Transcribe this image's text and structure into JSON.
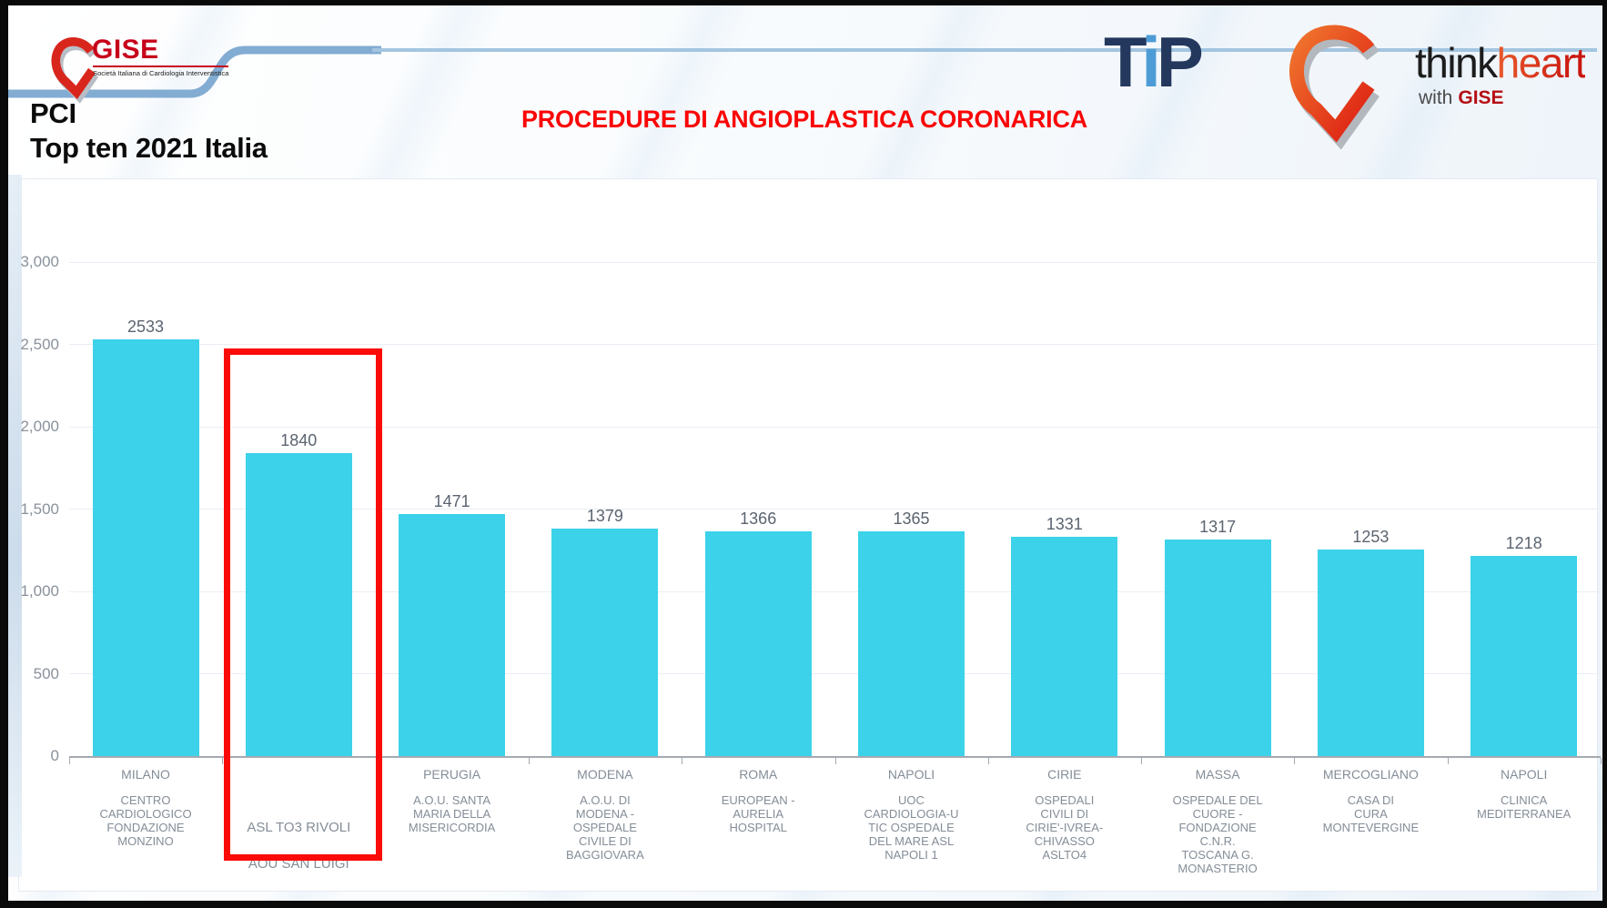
{
  "header": {
    "gise_logo": {
      "name": "GISE",
      "tagline": "Società Italiana di Cardiologia Interventistica"
    },
    "slide_title_line1": "PCI",
    "slide_title_line2": "Top ten 2021 Italia",
    "main_heading": "PROCEDURE DI ANGIOPLASTICA CORONARICA",
    "tip_logo": {
      "t": "T",
      "i": "i",
      "p": "P"
    },
    "thinkheart_logo": {
      "think": "think",
      "heart": "heart",
      "with": "with",
      "gise": "GISE"
    }
  },
  "chart_data": {
    "type": "bar",
    "title": "PCI Top ten 2021 Italia",
    "xlabel": "",
    "ylabel": "",
    "ylim": [
      0,
      3000
    ],
    "grid": true,
    "legend": false,
    "bar_color": "#3cd2e9",
    "highlight_color": "#fa0b07",
    "highlighted_index": 1,
    "y_ticks": [
      {
        "value": 0,
        "label": "0"
      },
      {
        "value": 500,
        "label": "500"
      },
      {
        "value": 1000,
        "label": "1,000"
      },
      {
        "value": 1500,
        "label": "1,500"
      },
      {
        "value": 2000,
        "label": "2,000"
      },
      {
        "value": 2500,
        "label": "2,500"
      },
      {
        "value": 3000,
        "label": "3,000"
      }
    ],
    "values": [
      2533,
      1840,
      1471,
      1379,
      1366,
      1365,
      1331,
      1317,
      1253,
      1218
    ],
    "categories": [
      {
        "city": "MILANO",
        "hospital_lines": [
          "CENTRO",
          "CARDIOLOGICO",
          "FONDAZIONE",
          "MONZINO"
        ]
      },
      {
        "city": "",
        "hospital_lines": [
          "ASL TO3 RIVOLI",
          "AOU SAN LUIGI"
        ]
      },
      {
        "city": "PERUGIA",
        "hospital_lines": [
          "A.O.U. SANTA",
          "MARIA DELLA",
          "MISERICORDIA"
        ]
      },
      {
        "city": "MODENA",
        "hospital_lines": [
          "A.O.U. DI",
          "MODENA -",
          "OSPEDALE",
          "CIVILE DI",
          "BAGGIOVARA"
        ]
      },
      {
        "city": "ROMA",
        "hospital_lines": [
          "EUROPEAN -",
          "AURELIA",
          "HOSPITAL"
        ]
      },
      {
        "city": "NAPOLI",
        "hospital_lines": [
          "UOC",
          "CARDIOLOGIA-U",
          "TIC OSPEDALE",
          "DEL MARE ASL",
          "NAPOLI 1"
        ]
      },
      {
        "city": "CIRIE",
        "hospital_lines": [
          "OSPEDALI",
          "CIVILI DI",
          "CIRIE'-IVREA-",
          "CHIVASSO",
          "ASLTO4"
        ]
      },
      {
        "city": "MASSA",
        "hospital_lines": [
          "OSPEDALE DEL",
          "CUORE -",
          "FONDAZIONE",
          "C.N.R.",
          "TOSCANA G.",
          "MONASTERIO"
        ]
      },
      {
        "city": "MERCOGLIANO",
        "hospital_lines": [
          "CASA DI",
          "CURA",
          "MONTEVERGINE"
        ]
      },
      {
        "city": "NAPOLI",
        "hospital_lines": [
          "CLINICA",
          "MEDITERRANEA"
        ]
      }
    ]
  }
}
